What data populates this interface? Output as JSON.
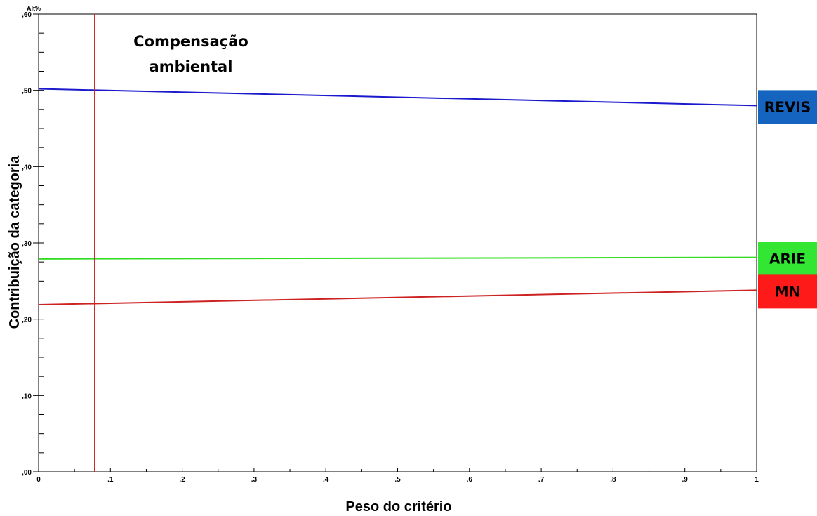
{
  "chart_data": {
    "type": "line",
    "unit_label": "Alt%",
    "xlabel": "Peso do critério",
    "ylabel": "Contribuição da categoria",
    "xlim": [
      0,
      1
    ],
    "ylim": [
      0,
      0.6
    ],
    "x_ticks": [
      "0",
      ".1",
      ".2",
      ".3",
      ".4",
      ".5",
      ".6",
      ".7",
      ".8",
      ".9",
      "1"
    ],
    "y_ticks": [
      ",00",
      ",10",
      ",20",
      ",30",
      ",40",
      ",50",
      ",60"
    ],
    "reference_line": {
      "x": 0.078,
      "color": "#cc2222"
    },
    "annotation": [
      "Compensação",
      "ambiental"
    ],
    "series": [
      {
        "name": "REVIS",
        "color": "#1a1acc",
        "badge_color": "#1565c0",
        "badge_text_color": "#000000",
        "x": [
          0,
          1
        ],
        "y": [
          0.502,
          0.48
        ]
      },
      {
        "name": "ARIE",
        "color": "#33dd22",
        "badge_color": "#33e633",
        "badge_text_color": "#000000",
        "x": [
          0,
          1
        ],
        "y": [
          0.279,
          0.281
        ]
      },
      {
        "name": "MN",
        "color": "#cc2222",
        "badge_color": "#ff1a1a",
        "badge_text_color": "#000000",
        "x": [
          0,
          1
        ],
        "y": [
          0.219,
          0.238
        ]
      }
    ]
  }
}
